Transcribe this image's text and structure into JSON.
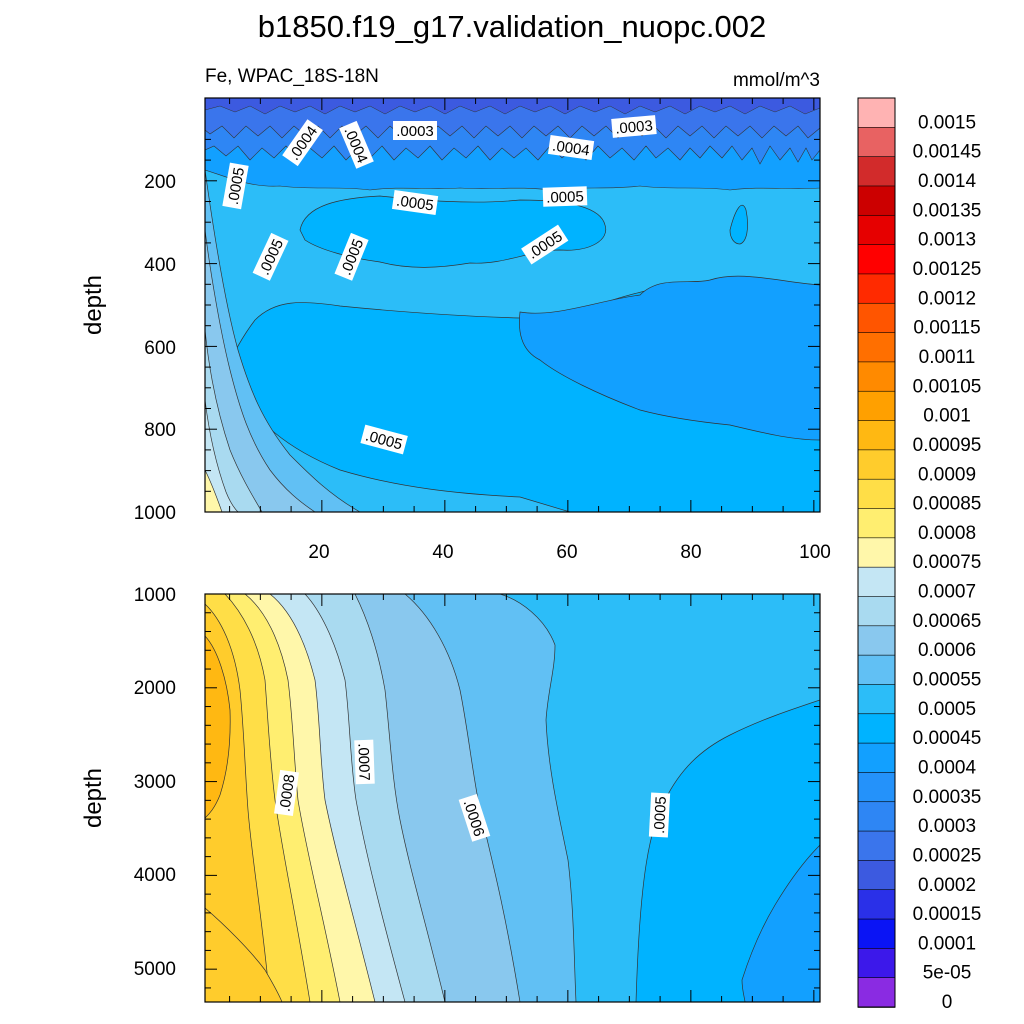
{
  "title": "b1850.f19_g17.validation_nuopc.002",
  "chart_data": [
    {
      "type": "heatmap",
      "panel": "upper",
      "subtitle_left": "Fe, WPAC_18S-18N",
      "subtitle_right": "mmol/m^3",
      "xlabel": "",
      "ylabel": "depth",
      "xlim": [
        1,
        101
      ],
      "ylim": [
        1000,
        0
      ],
      "x_ticks": [
        "20",
        "40",
        "60",
        "80",
        "100"
      ],
      "y_ticks": [
        "200",
        "400",
        "600",
        "800",
        "1000"
      ],
      "contour_labels": [
        {
          "text": ".0004",
          "x": 16,
          "y": 90
        },
        {
          "text": ".0004",
          "x": 24.5,
          "y": 95
        },
        {
          "text": ".0003",
          "x": 36,
          "y": 78
        },
        {
          "text": ".0004",
          "x": 58,
          "y": 100
        },
        {
          "text": ".0003",
          "x": 70,
          "y": 65
        },
        {
          "text": ".0005",
          "x": 6,
          "y": 190
        },
        {
          "text": ".0005",
          "x": 36,
          "y": 240
        },
        {
          "text": ".0005",
          "x": 57,
          "y": 210
        },
        {
          "text": ".0005",
          "x": 12,
          "y": 385
        },
        {
          "text": ".0005",
          "x": 25.5,
          "y": 385
        },
        {
          "text": ".0005",
          "x": 55,
          "y": 350
        },
        {
          "text": ".0005",
          "x": 30,
          "y": 820
        }
      ]
    },
    {
      "type": "heatmap",
      "panel": "lower",
      "xlabel": "",
      "ylabel": "depth",
      "xlim": [
        1,
        101
      ],
      "ylim": [
        5350,
        1000
      ],
      "y_ticks": [
        "1000",
        "2000",
        "3000",
        "4000",
        "5000"
      ],
      "contour_labels": [
        {
          "text": ".0008",
          "x": 14,
          "y": 3130
        },
        {
          "text": ".0007",
          "x": 26.5,
          "y": 2800
        },
        {
          "text": ".0006",
          "x": 44,
          "y": 3400
        },
        {
          "text": ".0005",
          "x": 74,
          "y": 3350
        }
      ]
    }
  ],
  "colorbar": {
    "labels": [
      "0.0015",
      "0.00145",
      "0.0014",
      "0.00135",
      "0.0013",
      "0.00125",
      "0.0012",
      "0.00115",
      "0.0011",
      "0.00105",
      "0.001",
      "0.00095",
      "0.0009",
      "0.00085",
      "0.0008",
      "0.00075",
      "0.0007",
      "0.00065",
      "0.0006",
      "0.00055",
      "0.0005",
      "0.00045",
      "0.0004",
      "0.00035",
      "0.0003",
      "0.00025",
      "0.0002",
      "0.00015",
      "0.0001",
      "5e-05",
      "0"
    ],
    "colors": [
      "#ffb3b3",
      "#e86262",
      "#d22b2b",
      "#cc0000",
      "#e60000",
      "#ff0000",
      "#ff2a00",
      "#ff5500",
      "#ff6f00",
      "#ff8a00",
      "#ffa000",
      "#ffb812",
      "#ffcc2c",
      "#ffde47",
      "#ffee70",
      "#fff7aa",
      "#c4e6f4",
      "#a9daf0",
      "#89c8ee",
      "#61c0f4",
      "#2cbdf8",
      "#00b3ff",
      "#12a0ff",
      "#2492fa",
      "#2e86f4",
      "#3a75ec",
      "#3c5ae0",
      "#2a30e8",
      "#0a14f5",
      "#3c18ea",
      "#8a2be2"
    ]
  }
}
